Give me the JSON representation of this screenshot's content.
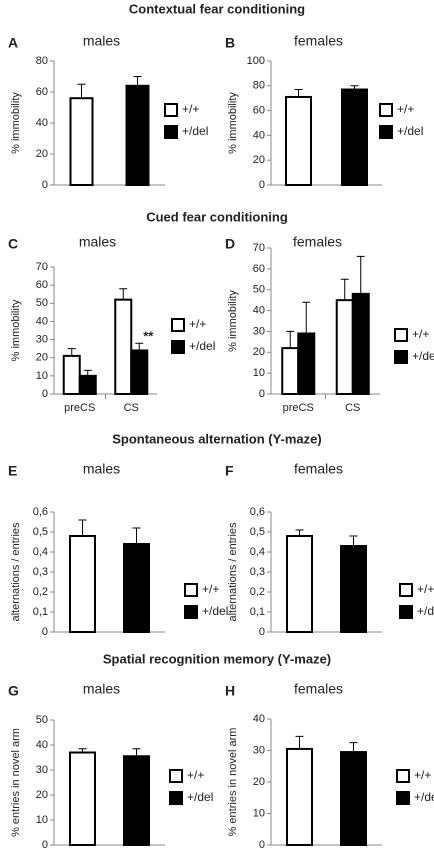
{
  "sections": [
    "Contextual fear conditioning",
    "Cued fear conditioning",
    "Spontaneous alternation (Y-maze)",
    "Spatial recognition memory (Y-maze)"
  ],
  "chart_data": [
    {
      "type": "bar",
      "panel": "A",
      "title": "males",
      "ylabel": "% immobility",
      "ylim": [
        0,
        80
      ],
      "yticks": [
        0,
        20,
        40,
        60,
        80
      ],
      "series": [
        {
          "name": "+/+",
          "color": "#ffffff",
          "values": [
            56
          ],
          "errors": [
            9
          ]
        },
        {
          "name": "+/del",
          "color": "#000000",
          "values": [
            64
          ],
          "errors": [
            6
          ]
        }
      ]
    },
    {
      "type": "bar",
      "panel": "B",
      "title": "females",
      "ylabel": "% immobility",
      "ylim": [
        0,
        100
      ],
      "yticks": [
        0,
        20,
        40,
        60,
        80,
        100
      ],
      "series": [
        {
          "name": "+/+",
          "color": "#ffffff",
          "values": [
            71
          ],
          "errors": [
            6
          ]
        },
        {
          "name": "+/del",
          "color": "#000000",
          "values": [
            77
          ],
          "errors": [
            3
          ]
        }
      ]
    },
    {
      "type": "bar",
      "panel": "C",
      "title": "males",
      "ylabel": "% immobility",
      "ylim": [
        0,
        70
      ],
      "yticks": [
        0,
        10,
        20,
        30,
        40,
        50,
        60,
        70
      ],
      "categories": [
        "preCS",
        "CS"
      ],
      "annotation": "**",
      "series": [
        {
          "name": "+/+",
          "color": "#ffffff",
          "values": [
            21,
            52
          ],
          "errors": [
            4,
            6
          ]
        },
        {
          "name": "+/del",
          "color": "#000000",
          "values": [
            10,
            24
          ],
          "errors": [
            3,
            4
          ]
        }
      ]
    },
    {
      "type": "bar",
      "panel": "D",
      "title": "females",
      "ylabel": "% immobility",
      "ylim": [
        0,
        70
      ],
      "yticks": [
        0,
        10,
        20,
        30,
        40,
        50,
        60,
        70
      ],
      "categories": [
        "preCS",
        "CS"
      ],
      "series": [
        {
          "name": "+/+",
          "color": "#ffffff",
          "values": [
            22,
            45
          ],
          "errors": [
            8,
            10
          ]
        },
        {
          "name": "+/del",
          "color": "#000000",
          "values": [
            29,
            48
          ],
          "errors": [
            15,
            18
          ]
        }
      ]
    },
    {
      "type": "bar",
      "panel": "E",
      "title": "males",
      "ylabel": "alternations / entries",
      "ylim": [
        0,
        0.6
      ],
      "yticks": [
        0,
        {
          "value": 0.1,
          "label": "0,1"
        },
        {
          "value": 0.2,
          "label": "0,2"
        },
        {
          "value": 0.3,
          "label": "0,3"
        },
        {
          "value": 0.4,
          "label": "0,4"
        },
        {
          "value": 0.5,
          "label": "0,5"
        },
        {
          "value": 0.6,
          "label": "0,6"
        }
      ],
      "series": [
        {
          "name": "+/+",
          "color": "#ffffff",
          "values": [
            0.48
          ],
          "errors": [
            0.08
          ]
        },
        {
          "name": "+/del",
          "color": "#000000",
          "values": [
            0.44
          ],
          "errors": [
            0.08
          ]
        }
      ]
    },
    {
      "type": "bar",
      "panel": "F",
      "title": "females",
      "ylabel": "alternations / entries",
      "ylim": [
        0,
        0.6
      ],
      "yticks": [
        0,
        {
          "value": 0.1,
          "label": "0,1"
        },
        {
          "value": 0.2,
          "label": "0,2"
        },
        {
          "value": 0.3,
          "label": "0,3"
        },
        {
          "value": 0.4,
          "label": "0,4"
        },
        {
          "value": 0.5,
          "label": "0,5"
        },
        {
          "value": 0.6,
          "label": "0,6"
        }
      ],
      "series": [
        {
          "name": "+/+",
          "color": "#ffffff",
          "values": [
            0.48
          ],
          "errors": [
            0.03
          ]
        },
        {
          "name": "+/del",
          "color": "#000000",
          "values": [
            0.43
          ],
          "errors": [
            0.05
          ]
        }
      ]
    },
    {
      "type": "bar",
      "panel": "G",
      "title": "males",
      "ylabel": "% entries in novel arm",
      "ylim": [
        0,
        50
      ],
      "yticks": [
        0,
        10,
        20,
        30,
        40,
        50
      ],
      "series": [
        {
          "name": "+/+",
          "color": "#ffffff",
          "values": [
            37
          ],
          "errors": [
            1.5
          ]
        },
        {
          "name": "+/del",
          "color": "#000000",
          "values": [
            35.5
          ],
          "errors": [
            3
          ]
        }
      ]
    },
    {
      "type": "bar",
      "panel": "H",
      "title": "females",
      "ylabel": "% entries in novel arm",
      "ylim": [
        0,
        40
      ],
      "yticks": [
        0,
        10,
        20,
        30,
        40
      ],
      "series": [
        {
          "name": "+/+",
          "color": "#ffffff",
          "values": [
            30.5
          ],
          "errors": [
            4
          ]
        },
        {
          "name": "+/del",
          "color": "#000000",
          "values": [
            29.5
          ],
          "errors": [
            3
          ]
        }
      ]
    }
  ]
}
